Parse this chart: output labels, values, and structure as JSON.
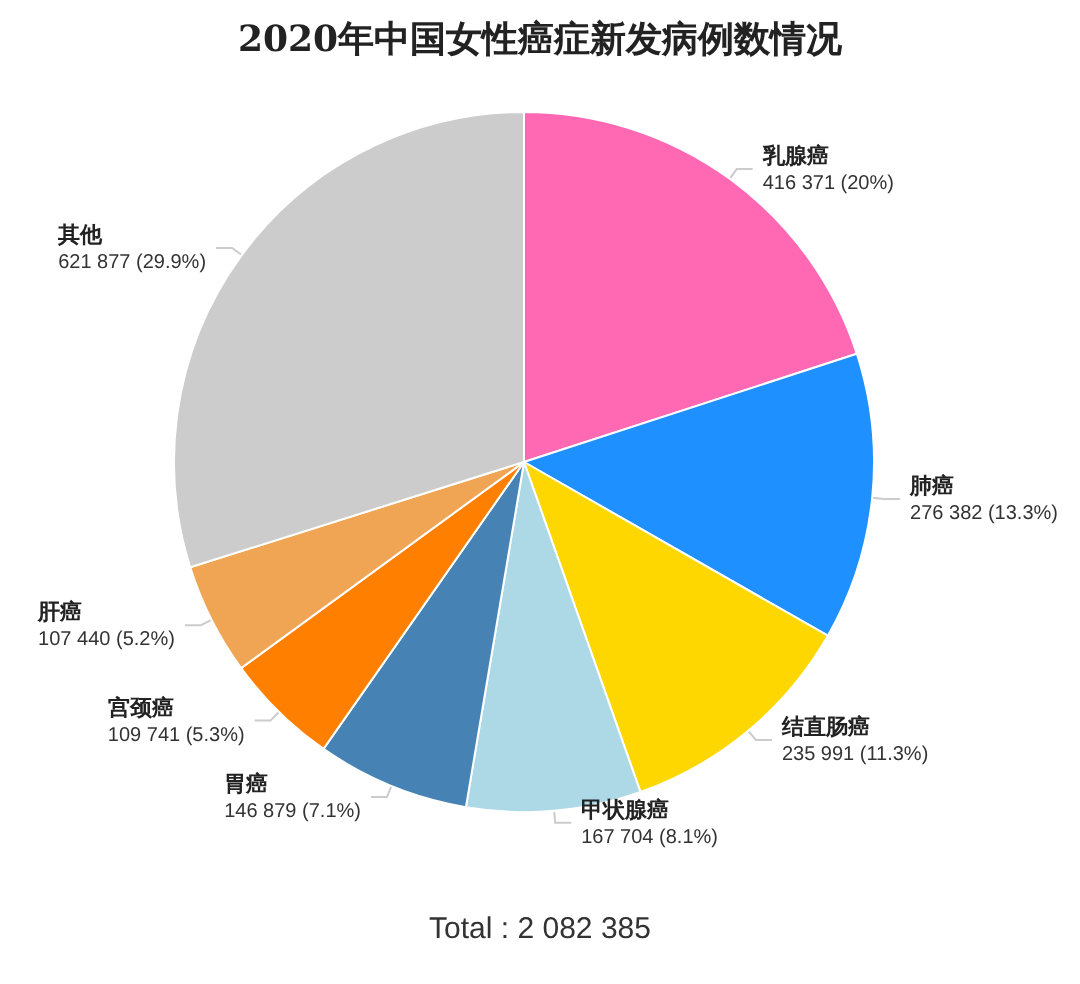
{
  "chart_data": {
    "type": "pie",
    "title": "2020年中国女性癌症新发病例数情况",
    "categories": [
      "乳腺癌",
      "肺癌",
      "结直肠癌",
      "甲状腺癌",
      "胃癌",
      "宫颈癌",
      "肝癌",
      "其他"
    ],
    "values": [
      416371,
      276382,
      235991,
      167704,
      146879,
      109741,
      107440,
      621877
    ],
    "value_labels": [
      "416 371 (20%)",
      "276 382 (13.3%)",
      "235 991 (11.3%)",
      "167 704 (8.1%)",
      "146 879 (7.1%)",
      "109 741 (5.3%)",
      "107 440 (5.2%)",
      "621 877 (29.9%)"
    ],
    "colors": [
      "#ff69b4",
      "#1e90ff",
      "#ffd700",
      "#add8e6",
      "#4682b4",
      "#ff7f00",
      "#f0a555",
      "#cccccc"
    ],
    "annotations": [
      "Total : 2 082 385"
    ]
  }
}
